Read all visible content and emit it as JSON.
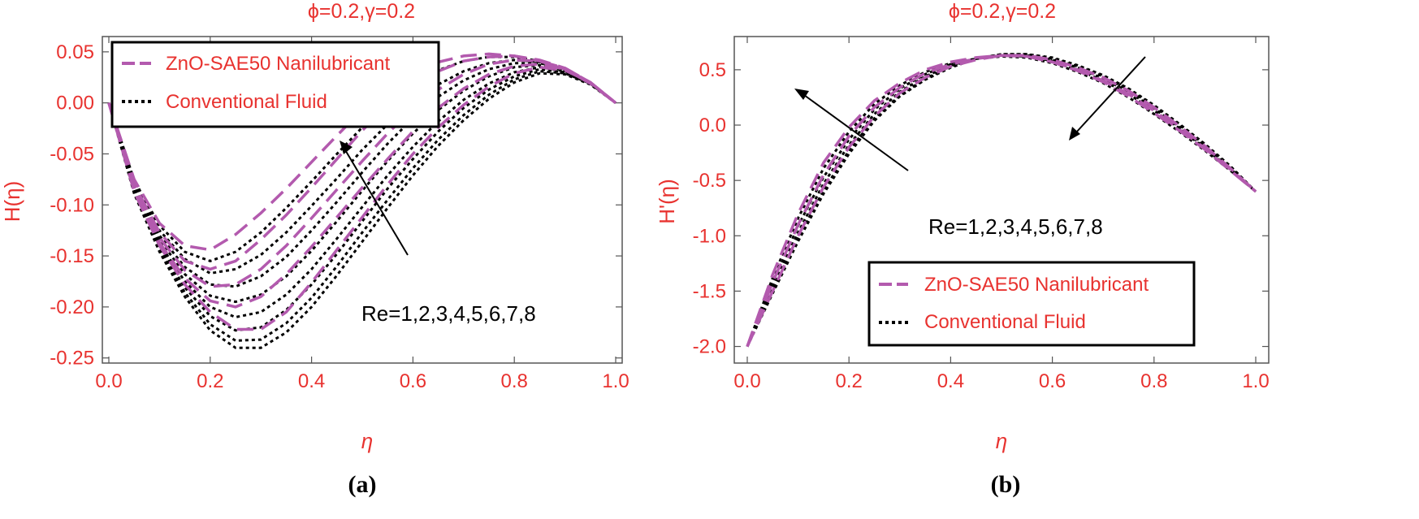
{
  "colors": {
    "nano": "#b35aae",
    "conventional": "#000000",
    "text": "#e8322f"
  },
  "chart_data": [
    {
      "type": "line",
      "panel_label": "(a)",
      "title": "ϕ=0.2,γ=0.2",
      "xlabel": "η",
      "ylabel": "H(η)",
      "xlim": [
        0,
        1.0
      ],
      "ylim": [
        -0.255,
        0.065
      ],
      "xticks": [
        "0.0",
        "0.2",
        "0.4",
        "0.6",
        "0.8",
        "1.0"
      ],
      "yticks": [
        "0.05",
        "0.00",
        "-0.05",
        "-0.10",
        "-0.15",
        "-0.20",
        "-0.25"
      ],
      "legend": {
        "position": "top-left",
        "entries": [
          "ZnO-SAE50 Nanilubricant",
          "Conventional Fluid"
        ]
      },
      "annotation": "Re=1,2,3,4,5,6,7,8",
      "x": [
        0.0,
        0.05,
        0.1,
        0.15,
        0.2,
        0.25,
        0.3,
        0.35,
        0.4,
        0.45,
        0.5,
        0.55,
        0.6,
        0.65,
        0.7,
        0.75,
        0.8,
        0.85,
        0.9,
        0.95,
        1.0
      ],
      "series": [
        {
          "group": "nano",
          "Re": 1,
          "values": [
            0.0,
            -0.075,
            -0.118,
            -0.14,
            -0.144,
            -0.129,
            -0.108,
            -0.084,
            -0.058,
            -0.032,
            -0.007,
            0.014,
            0.03,
            0.04,
            0.046,
            0.048,
            0.046,
            0.041,
            0.033,
            0.019,
            0.0
          ]
        },
        {
          "group": "nano",
          "Re": 3,
          "values": [
            0.0,
            -0.08,
            -0.127,
            -0.155,
            -0.163,
            -0.155,
            -0.134,
            -0.11,
            -0.083,
            -0.055,
            -0.027,
            -0.003,
            0.017,
            0.031,
            0.041,
            0.045,
            0.046,
            0.042,
            0.034,
            0.02,
            0.0
          ]
        },
        {
          "group": "nano",
          "Re": 5,
          "values": [
            0.0,
            -0.083,
            -0.132,
            -0.164,
            -0.18,
            -0.178,
            -0.163,
            -0.14,
            -0.113,
            -0.085,
            -0.057,
            -0.03,
            -0.006,
            0.013,
            0.028,
            0.038,
            0.042,
            0.041,
            0.034,
            0.02,
            0.0
          ]
        },
        {
          "group": "nano",
          "Re": 7,
          "values": [
            0.0,
            -0.085,
            -0.137,
            -0.172,
            -0.194,
            -0.2,
            -0.19,
            -0.168,
            -0.141,
            -0.112,
            -0.083,
            -0.055,
            -0.028,
            -0.005,
            0.014,
            0.028,
            0.036,
            0.038,
            0.033,
            0.02,
            0.0
          ]
        },
        {
          "group": "nano",
          "Re": 8,
          "values": [
            0.0,
            -0.087,
            -0.14,
            -0.178,
            -0.205,
            -0.222,
            -0.222,
            -0.205,
            -0.176,
            -0.144,
            -0.112,
            -0.08,
            -0.05,
            -0.024,
            -0.002,
            0.016,
            0.029,
            0.035,
            0.032,
            0.02,
            0.0
          ]
        },
        {
          "group": "conventional",
          "Re": 1,
          "values": [
            0.0,
            -0.076,
            -0.12,
            -0.146,
            -0.155,
            -0.146,
            -0.127,
            -0.103,
            -0.077,
            -0.05,
            -0.024,
            -0.001,
            0.018,
            0.032,
            0.041,
            0.045,
            0.045,
            0.041,
            0.033,
            0.019,
            0.0
          ]
        },
        {
          "group": "conventional",
          "Re": 2,
          "values": [
            0.0,
            -0.079,
            -0.125,
            -0.153,
            -0.167,
            -0.163,
            -0.149,
            -0.127,
            -0.101,
            -0.074,
            -0.046,
            -0.021,
            0.001,
            0.018,
            0.031,
            0.039,
            0.042,
            0.04,
            0.033,
            0.02,
            0.0
          ]
        },
        {
          "group": "conventional",
          "Re": 3,
          "values": [
            0.0,
            -0.082,
            -0.13,
            -0.161,
            -0.178,
            -0.18,
            -0.17,
            -0.151,
            -0.125,
            -0.097,
            -0.068,
            -0.04,
            -0.015,
            0.006,
            0.022,
            0.033,
            0.039,
            0.039,
            0.033,
            0.02,
            0.0
          ]
        },
        {
          "group": "conventional",
          "Re": 4,
          "values": [
            0.0,
            -0.084,
            -0.134,
            -0.168,
            -0.189,
            -0.195,
            -0.188,
            -0.17,
            -0.145,
            -0.116,
            -0.086,
            -0.057,
            -0.03,
            -0.007,
            0.012,
            0.026,
            0.035,
            0.037,
            0.032,
            0.02,
            0.0
          ]
        },
        {
          "group": "conventional",
          "Re": 5,
          "values": [
            0.0,
            -0.086,
            -0.138,
            -0.175,
            -0.2,
            -0.21,
            -0.205,
            -0.188,
            -0.163,
            -0.133,
            -0.102,
            -0.071,
            -0.043,
            -0.018,
            0.003,
            0.019,
            0.03,
            0.035,
            0.031,
            0.019,
            0.0
          ]
        },
        {
          "group": "conventional",
          "Re": 6,
          "values": [
            0.0,
            -0.087,
            -0.141,
            -0.181,
            -0.209,
            -0.223,
            -0.22,
            -0.203,
            -0.178,
            -0.148,
            -0.116,
            -0.084,
            -0.055,
            -0.028,
            -0.005,
            0.013,
            0.026,
            0.033,
            0.03,
            0.019,
            0.0
          ]
        },
        {
          "group": "conventional",
          "Re": 7,
          "values": [
            0.0,
            -0.088,
            -0.144,
            -0.186,
            -0.217,
            -0.233,
            -0.232,
            -0.216,
            -0.191,
            -0.16,
            -0.127,
            -0.095,
            -0.064,
            -0.036,
            -0.012,
            0.008,
            0.023,
            0.031,
            0.029,
            0.019,
            0.0
          ]
        },
        {
          "group": "conventional",
          "Re": 8,
          "values": [
            0.0,
            -0.089,
            -0.146,
            -0.19,
            -0.223,
            -0.24,
            -0.24,
            -0.225,
            -0.2,
            -0.169,
            -0.136,
            -0.103,
            -0.071,
            -0.042,
            -0.017,
            0.004,
            0.02,
            0.029,
            0.028,
            0.018,
            0.0
          ]
        }
      ]
    },
    {
      "type": "line",
      "panel_label": "(b)",
      "title": "ϕ=0.2,γ=0.2",
      "xlabel": "η",
      "ylabel": "H'(η)",
      "xlim": [
        0,
        1.0
      ],
      "ylim": [
        -2.15,
        0.8
      ],
      "xticks": [
        "0.0",
        "0.2",
        "0.4",
        "0.6",
        "0.8",
        "1.0"
      ],
      "yticks": [
        "0.5",
        "0.0",
        "-0.5",
        "-1.0",
        "-1.5",
        "-2.0"
      ],
      "legend": {
        "position": "bottom-right",
        "entries": [
          "ZnO-SAE50 Nanilubricant",
          "Conventional Fluid"
        ]
      },
      "annotation": "Re=1,2,3,4,5,6,7,8",
      "x": [
        0.0,
        0.05,
        0.1,
        0.15,
        0.2,
        0.25,
        0.3,
        0.35,
        0.4,
        0.45,
        0.5,
        0.55,
        0.6,
        0.65,
        0.7,
        0.75,
        0.8,
        0.85,
        0.9,
        0.95,
        1.0
      ],
      "series": [
        {
          "group": "nano",
          "Re": 1,
          "values": [
            -2.0,
            -1.35,
            -0.8,
            -0.34,
            -0.02,
            0.22,
            0.38,
            0.5,
            0.57,
            0.61,
            0.63,
            0.62,
            0.57,
            0.49,
            0.39,
            0.26,
            0.11,
            -0.05,
            -0.22,
            -0.41,
            -0.6
          ]
        },
        {
          "group": "nano",
          "Re": 4,
          "values": [
            -2.0,
            -1.42,
            -0.9,
            -0.45,
            -0.1,
            0.16,
            0.34,
            0.47,
            0.55,
            0.6,
            0.63,
            0.62,
            0.57,
            0.5,
            0.4,
            0.28,
            0.13,
            -0.04,
            -0.21,
            -0.4,
            -0.6
          ]
        },
        {
          "group": "nano",
          "Re": 8,
          "values": [
            -2.0,
            -1.5,
            -1.0,
            -0.56,
            -0.2,
            0.08,
            0.29,
            0.43,
            0.53,
            0.59,
            0.63,
            0.63,
            0.59,
            0.52,
            0.43,
            0.31,
            0.16,
            -0.01,
            -0.19,
            -0.39,
            -0.6
          ]
        },
        {
          "group": "conventional",
          "Re": 1,
          "values": [
            -2.0,
            -1.38,
            -0.84,
            -0.39,
            -0.06,
            0.19,
            0.36,
            0.48,
            0.56,
            0.6,
            0.62,
            0.61,
            0.56,
            0.48,
            0.38,
            0.25,
            0.1,
            -0.06,
            -0.23,
            -0.41,
            -0.6
          ]
        },
        {
          "group": "conventional",
          "Re": 3,
          "values": [
            -2.0,
            -1.43,
            -0.91,
            -0.47,
            -0.13,
            0.14,
            0.33,
            0.46,
            0.55,
            0.6,
            0.63,
            0.62,
            0.58,
            0.5,
            0.4,
            0.28,
            0.13,
            -0.03,
            -0.21,
            -0.4,
            -0.6
          ]
        },
        {
          "group": "conventional",
          "Re": 5,
          "values": [
            -2.0,
            -1.47,
            -0.97,
            -0.53,
            -0.18,
            0.1,
            0.3,
            0.44,
            0.54,
            0.6,
            0.63,
            0.63,
            0.59,
            0.52,
            0.42,
            0.3,
            0.15,
            -0.02,
            -0.2,
            -0.39,
            -0.6
          ]
        },
        {
          "group": "conventional",
          "Re": 7,
          "values": [
            -2.0,
            -1.5,
            -1.02,
            -0.59,
            -0.23,
            0.06,
            0.27,
            0.42,
            0.53,
            0.6,
            0.64,
            0.64,
            0.6,
            0.53,
            0.44,
            0.32,
            0.17,
            0.0,
            -0.18,
            -0.38,
            -0.6
          ]
        },
        {
          "group": "conventional",
          "Re": 8,
          "values": [
            -2.0,
            -1.52,
            -1.05,
            -0.62,
            -0.26,
            0.04,
            0.26,
            0.41,
            0.52,
            0.6,
            0.64,
            0.64,
            0.61,
            0.54,
            0.45,
            0.33,
            0.18,
            0.01,
            -0.17,
            -0.37,
            -0.6
          ]
        }
      ]
    }
  ]
}
